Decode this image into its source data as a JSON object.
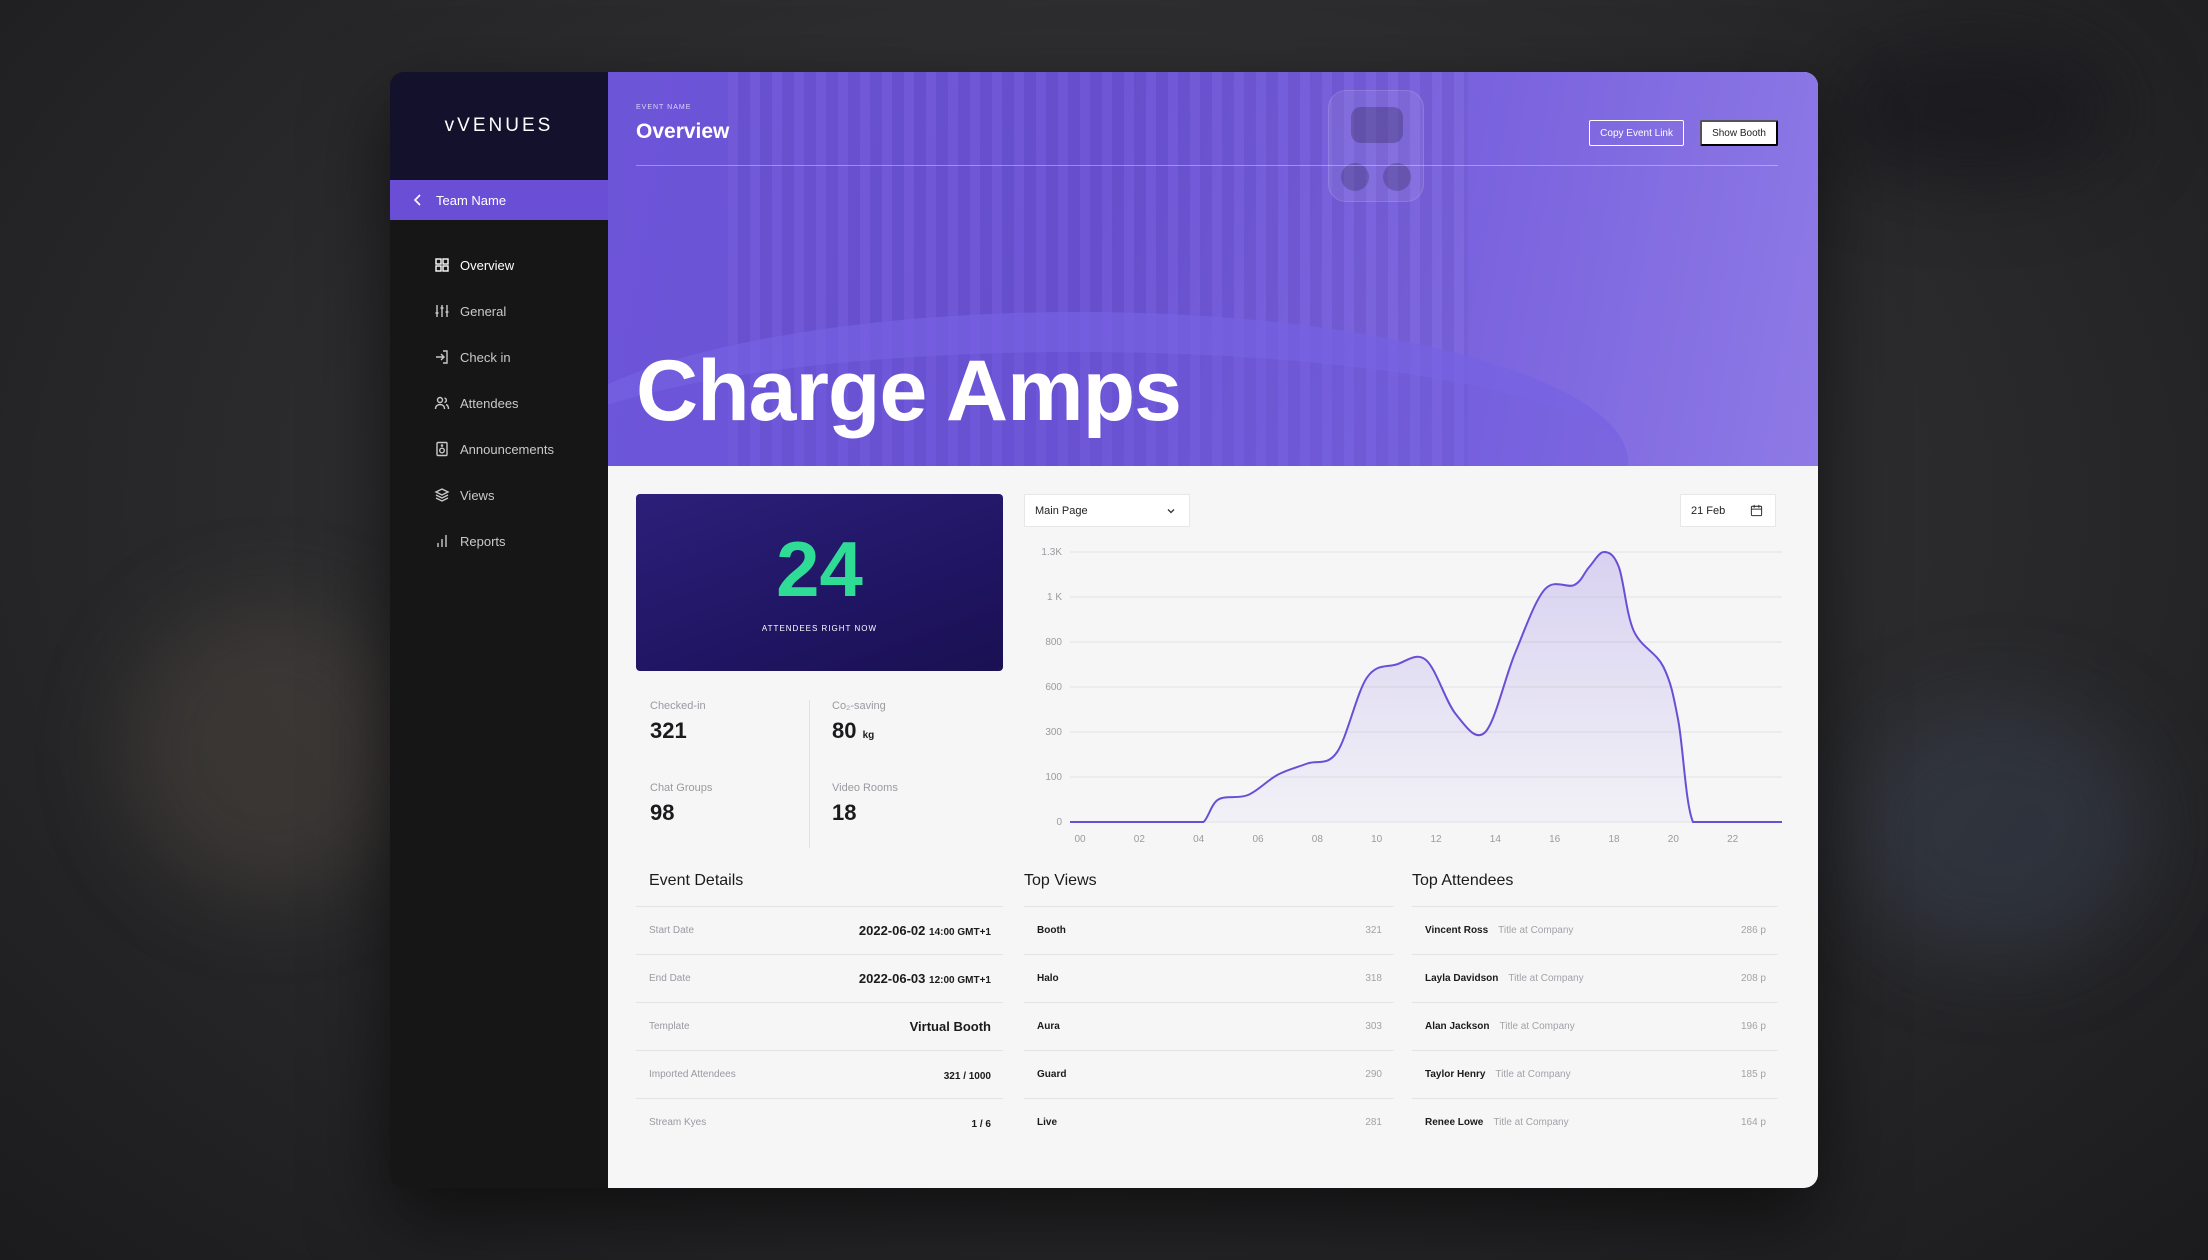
{
  "app": {
    "brand": "vVENUES",
    "accent": "#6a4fd6",
    "live_color": "#2fdc96"
  },
  "sidebar": {
    "team_name": "Team Name",
    "items": [
      {
        "label": "Overview",
        "icon": "grid-icon",
        "active": true
      },
      {
        "label": "General",
        "icon": "sliders-icon"
      },
      {
        "label": "Check in",
        "icon": "login-icon"
      },
      {
        "label": "Attendees",
        "icon": "users-icon"
      },
      {
        "label": "Announcements",
        "icon": "speaker-icon"
      },
      {
        "label": "Views",
        "icon": "layers-icon"
      },
      {
        "label": "Reports",
        "icon": "bar-chart-icon"
      }
    ]
  },
  "header": {
    "event_label": "EVENT NAME",
    "page_title": "Overview",
    "copy_link_label": "Copy Event Link",
    "show_booth_label": "Show Booth",
    "event_title": "Charge Amps"
  },
  "live": {
    "count": "24",
    "label": "ATTENDEES RIGHT NOW"
  },
  "stats": [
    {
      "label": "Checked-in",
      "value": "321",
      "unit": ""
    },
    {
      "label": "Co₂-saving",
      "value": "80",
      "unit": "kg"
    },
    {
      "label": "Chat Groups",
      "value": "98",
      "unit": ""
    },
    {
      "label": "Video Rooms",
      "value": "18",
      "unit": ""
    }
  ],
  "chart_controls": {
    "view_select": "Main Page",
    "date": "21 Feb"
  },
  "chart_data": {
    "type": "area",
    "y_tick_labels": [
      "0",
      "100",
      "300",
      "600",
      "800",
      "1 K",
      "1.3K"
    ],
    "x_tick_labels": [
      "00",
      "02",
      "04",
      "06",
      "08",
      "10",
      "12",
      "14",
      "16",
      "18",
      "20",
      "22",
      "00"
    ],
    "x": [
      0,
      2,
      4,
      4.5,
      5,
      6,
      7,
      8,
      9,
      10,
      11,
      12,
      13,
      14,
      15,
      16,
      17,
      17.5,
      18,
      18.5,
      19,
      20,
      20.5,
      21,
      22,
      23,
      24
    ],
    "y": [
      0,
      0,
      0,
      0,
      50,
      60,
      110,
      160,
      210,
      640,
      700,
      720,
      420,
      300,
      750,
      1050,
      1080,
      1200,
      1300,
      1200,
      850,
      690,
      380,
      0,
      0,
      0,
      0
    ],
    "y_scale_note_ticks": [
      0,
      100,
      300,
      600,
      800,
      1000,
      1300
    ],
    "grid": true
  },
  "event_details": {
    "title": "Event Details",
    "rows": [
      {
        "label": "Start Date",
        "value": "2022-06-02",
        "suffix": "14:00 GMT+1"
      },
      {
        "label": "End Date",
        "value": "2022-06-03",
        "suffix": "12:00 GMT+1"
      },
      {
        "label": "Template",
        "value": "Virtual Booth",
        "suffix": ""
      },
      {
        "label": "Imported Attendees",
        "value": "321",
        "suffix": "/ 1000"
      },
      {
        "label": "Stream Kyes",
        "value": "1",
        "suffix": "/ 6"
      }
    ]
  },
  "top_views": {
    "title": "Top Views",
    "rows": [
      {
        "name": "Booth",
        "count": "321"
      },
      {
        "name": "Halo",
        "count": "318"
      },
      {
        "name": "Aura",
        "count": "303"
      },
      {
        "name": "Guard",
        "count": "290"
      },
      {
        "name": "Live",
        "count": "281"
      }
    ]
  },
  "top_attendees": {
    "title": "Top Attendees",
    "rows": [
      {
        "name": "Vincent Ross",
        "title": "Title at Company",
        "points": "286 p"
      },
      {
        "name": "Layla Davidson",
        "title": "Title at Company",
        "points": "208 p"
      },
      {
        "name": "Alan Jackson",
        "title": "Title at Company",
        "points": "196 p"
      },
      {
        "name": "Taylor Henry",
        "title": "Title at Company",
        "points": "185 p"
      },
      {
        "name": "Renee Lowe",
        "title": "Title at Company",
        "points": "164 p"
      }
    ]
  }
}
